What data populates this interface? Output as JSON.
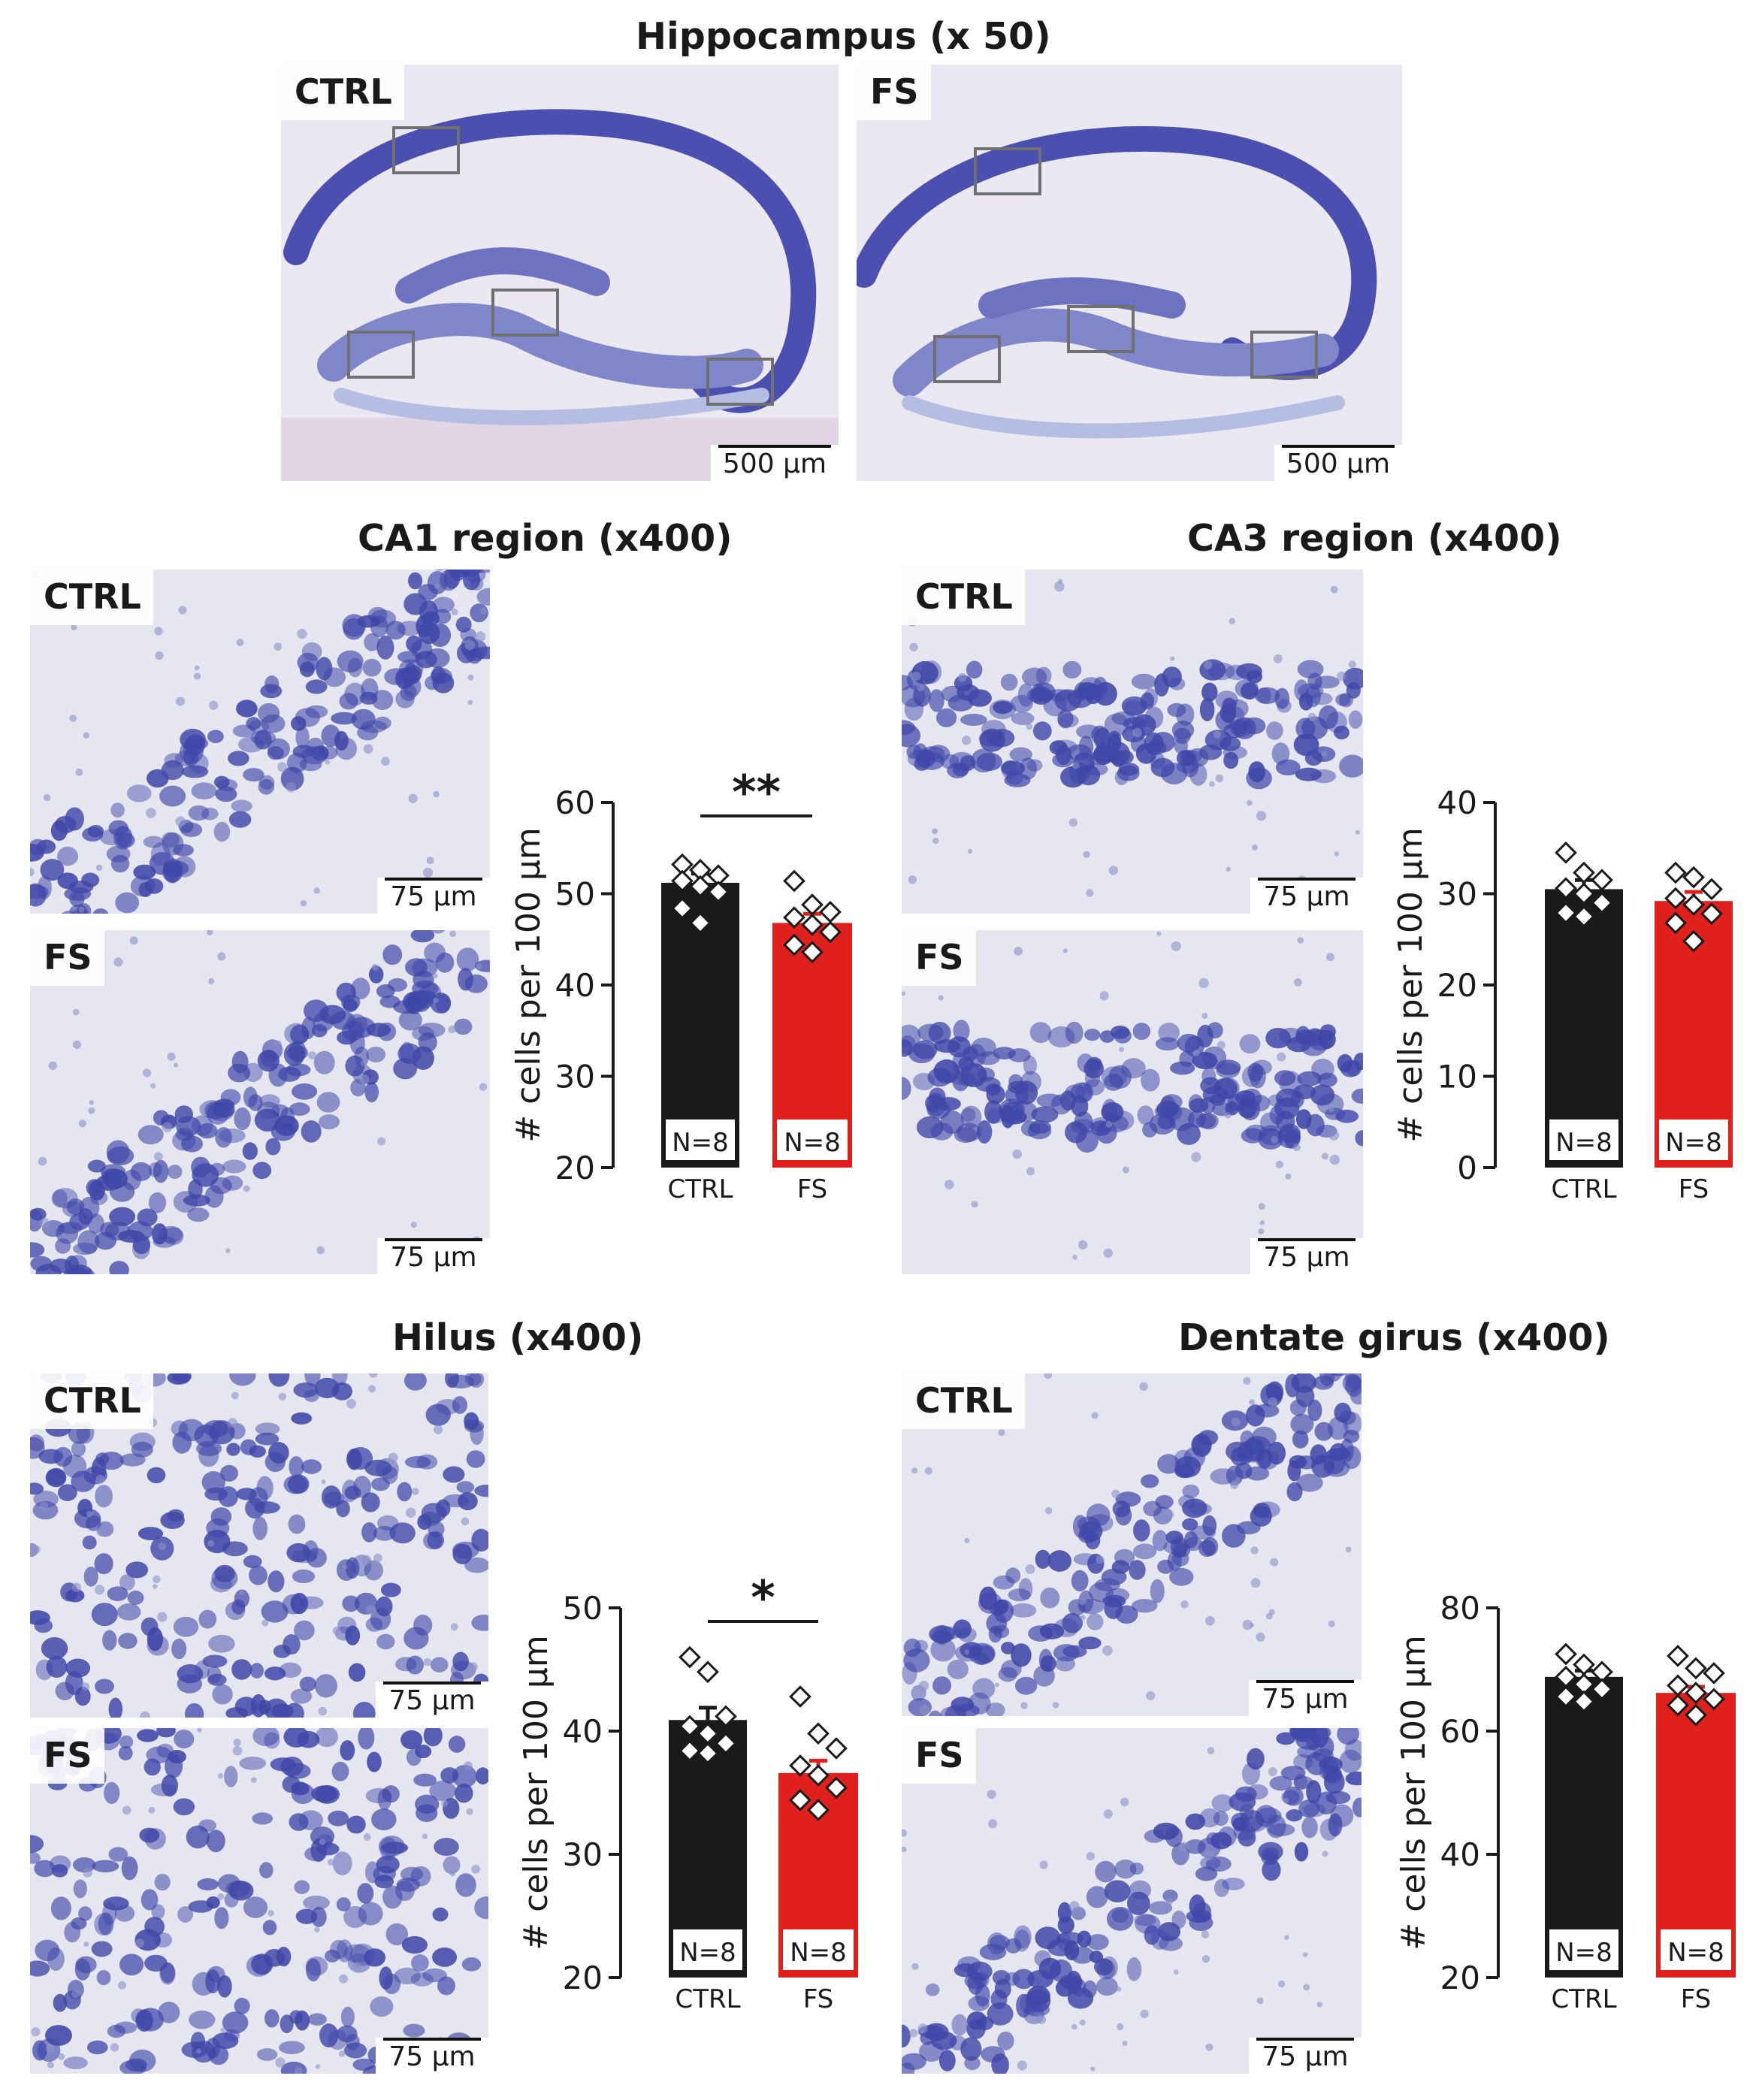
{
  "figure": {
    "overview": {
      "title": "Hippocampus (x 50)",
      "panels": [
        {
          "label": "CTRL",
          "scale": "500 µm"
        },
        {
          "label": "FS",
          "scale": "500 µm"
        }
      ]
    },
    "regions": [
      {
        "title": "CA1 region (x400)",
        "top": {
          "label": "CTRL",
          "scale": "75 µm"
        },
        "bottom": {
          "label": "FS",
          "scale": "75 µm"
        }
      },
      {
        "title": "CA3 region (x400)",
        "top": {
          "label": "CTRL",
          "scale": "75 µm"
        },
        "bottom": {
          "label": "FS",
          "scale": "75 µm"
        }
      },
      {
        "title": "Hilus (x400)",
        "top": {
          "label": "CTRL",
          "scale": "75 µm"
        },
        "bottom": {
          "label": "FS",
          "scale": "75 µm"
        }
      },
      {
        "title": "Dentate girus  (x400)",
        "top": {
          "label": "CTRL",
          "scale": "75 µm"
        },
        "bottom": {
          "label": "FS",
          "scale": "75 µm"
        }
      }
    ]
  },
  "colors": {
    "ctrl": "#1a1a1a",
    "fs": "#e0201d",
    "stain": "#3f47a8",
    "tissue": "#e6e6f1"
  },
  "chart_data": [
    {
      "type": "bar",
      "ylabel": "# cells per 100 µm",
      "categories": [
        "CTRL",
        "FS"
      ],
      "values": [
        51.2,
        46.8
      ],
      "errors": [
        1.0,
        1.0
      ],
      "ylim": [
        20,
        60
      ],
      "yticks": [
        20,
        30,
        40,
        50,
        60
      ],
      "n_labels": [
        "N=8",
        "N=8"
      ],
      "significance": "**",
      "points": [
        [
          53.2,
          52.6,
          52.0,
          51.4,
          50.8,
          50.2,
          48.4,
          46.8
        ],
        [
          51.4,
          48.8,
          48.0,
          47.4,
          46.6,
          45.8,
          44.4,
          43.6
        ]
      ]
    },
    {
      "type": "bar",
      "ylabel": "# cells per 100 µm",
      "categories": [
        "CTRL",
        "FS"
      ],
      "values": [
        30.5,
        29.2
      ],
      "errors": [
        1.0,
        1.0
      ],
      "ylim": [
        0,
        40
      ],
      "yticks": [
        0,
        10,
        20,
        30,
        40
      ],
      "n_labels": [
        "N=8",
        "N=8"
      ],
      "significance": "",
      "points": [
        [
          34.5,
          32.3,
          31.5,
          30.6,
          30.0,
          29.0,
          27.9,
          27.5
        ],
        [
          32.3,
          31.8,
          30.5,
          29.5,
          28.8,
          27.8,
          26.8,
          24.8
        ]
      ]
    },
    {
      "type": "bar",
      "ylabel": "# cells per 100 µm",
      "categories": [
        "CTRL",
        "FS"
      ],
      "values": [
        40.9,
        36.6
      ],
      "errors": [
        1.0,
        1.0
      ],
      "ylim": [
        20,
        50
      ],
      "yticks": [
        20,
        30,
        40,
        50
      ],
      "n_labels": [
        "N=8",
        "N=8"
      ],
      "significance": "*",
      "points": [
        [
          46.0,
          44.8,
          41.2,
          40.4,
          39.8,
          39.0,
          38.4,
          38.2
        ],
        [
          42.8,
          39.8,
          38.6,
          37.2,
          36.4,
          35.4,
          34.4,
          33.6
        ]
      ]
    },
    {
      "type": "bar",
      "ylabel": "# cells per 100 µm",
      "categories": [
        "CTRL",
        "FS"
      ],
      "values": [
        68.8,
        66.2
      ],
      "errors": [
        1.0,
        1.0
      ],
      "ylim": [
        20,
        80
      ],
      "yticks": [
        20,
        40,
        60,
        80
      ],
      "n_labels": [
        "N=8",
        "N=8"
      ],
      "significance": "",
      "points": [
        [
          72.5,
          70.8,
          69.6,
          68.8,
          67.6,
          66.8,
          65.6,
          64.8
        ],
        [
          72.2,
          70.2,
          69.4,
          67.4,
          66.2,
          65.2,
          64.2,
          62.6
        ]
      ]
    }
  ]
}
